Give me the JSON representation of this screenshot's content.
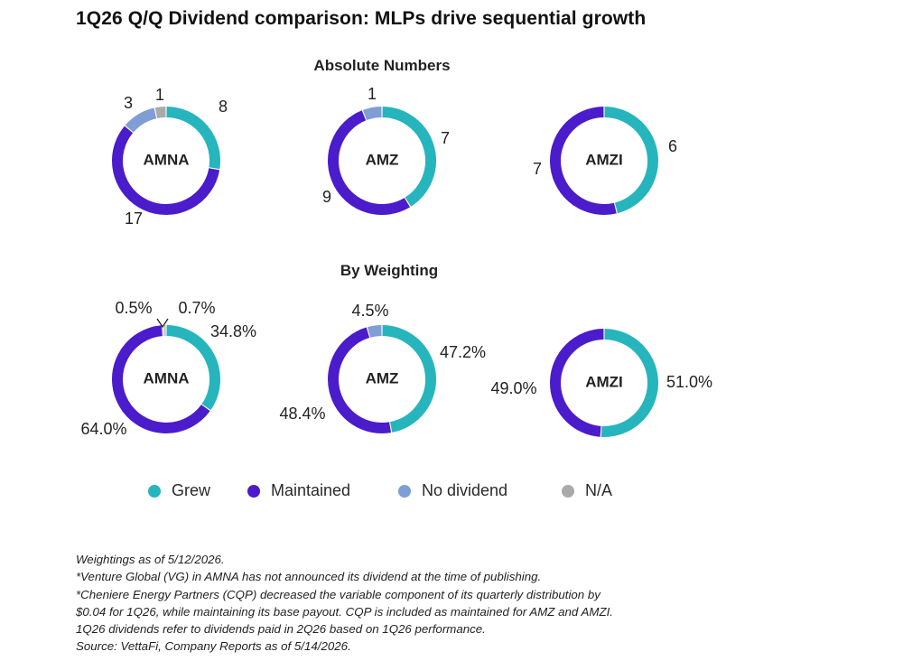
{
  "title": "1Q26 Q/Q Dividend comparison: MLPs drive sequential growth",
  "sections": {
    "absolute": "Absolute Numbers",
    "weighting": "By Weighting"
  },
  "colors": {
    "grew": "#26b5bd",
    "maintained": "#4a1ccc",
    "no_dividend": "#7f9ed6",
    "na": "#aaaaaa"
  },
  "chart_data": [
    {
      "type": "pie",
      "name": "AMNA",
      "group": "Absolute Numbers",
      "categories": [
        "Grew",
        "Maintained",
        "No dividend",
        "N/A"
      ],
      "values": [
        8,
        17,
        3,
        1
      ],
      "labels": [
        "8",
        "17",
        "3",
        "1"
      ]
    },
    {
      "type": "pie",
      "name": "AMZ",
      "group": "Absolute Numbers",
      "categories": [
        "Grew",
        "Maintained",
        "No dividend"
      ],
      "values": [
        7,
        9,
        1
      ],
      "labels": [
        "7",
        "9",
        "1"
      ]
    },
    {
      "type": "pie",
      "name": "AMZI",
      "group": "Absolute Numbers",
      "categories": [
        "Grew",
        "Maintained"
      ],
      "values": [
        6,
        7
      ],
      "labels": [
        "6",
        "7"
      ]
    },
    {
      "type": "pie",
      "name": "AMNA",
      "group": "By Weighting",
      "categories": [
        "Grew",
        "Maintained",
        "No dividend",
        "N/A"
      ],
      "values": [
        34.8,
        64.0,
        0.5,
        0.7
      ],
      "labels": [
        "34.8%",
        "64.0%",
        "0.5%",
        "0.7%"
      ]
    },
    {
      "type": "pie",
      "name": "AMZ",
      "group": "By Weighting",
      "categories": [
        "Grew",
        "Maintained",
        "No dividend"
      ],
      "values": [
        47.2,
        48.4,
        4.5
      ],
      "labels": [
        "47.2%",
        "48.4%",
        "4.5%"
      ]
    },
    {
      "type": "pie",
      "name": "AMZI",
      "group": "By Weighting",
      "categories": [
        "Grew",
        "Maintained"
      ],
      "values": [
        51.0,
        49.0
      ],
      "labels": [
        "51.0%",
        "49.0%"
      ]
    }
  ],
  "legend": [
    {
      "label": "Grew",
      "color": "#26b5bd"
    },
    {
      "label": "Maintained",
      "color": "#4a1ccc"
    },
    {
      "label": "No dividend",
      "color": "#7f9ed6"
    },
    {
      "label": "N/A",
      "color": "#aaaaaa"
    }
  ],
  "notes": [
    "Weightings as of 5/12/2026.",
    "*Venture Global (VG) in AMNA has not announced its dividend at the time of publishing.",
    "*Cheniere Energy Partners (CQP) decreased the variable component of its quarterly distribution by",
    "$0.04 for 1Q26, while maintaining its base payout. CQP is included as maintained for AMZ and AMZI.",
    "1Q26 dividends refer to dividends paid in 2Q26 based on 1Q26 performance.",
    "Source: VettaFi, Company Reports as of 5/14/2026."
  ]
}
